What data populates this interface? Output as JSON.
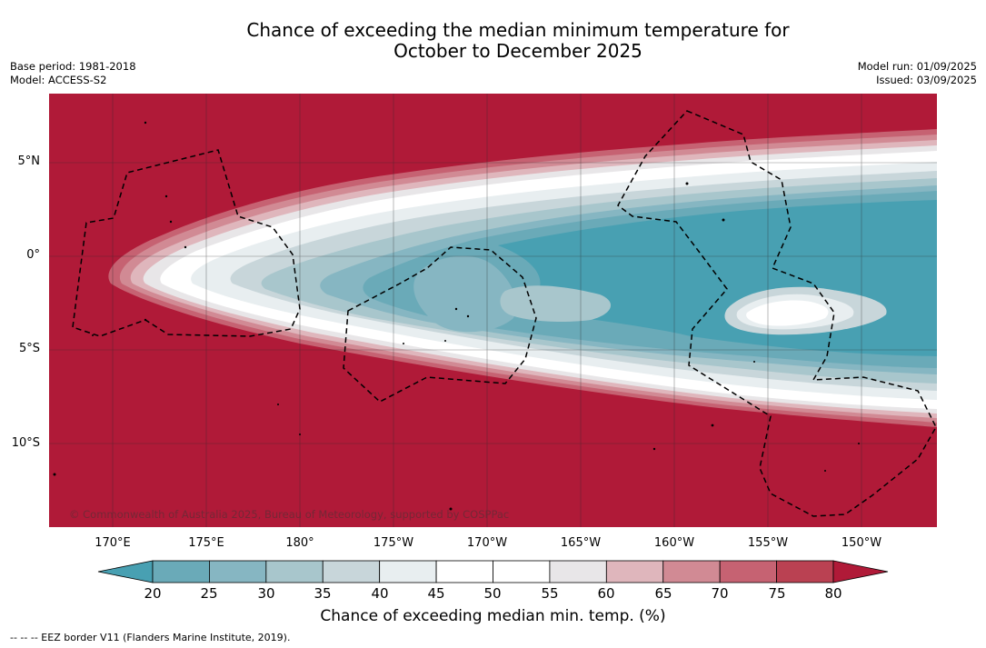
{
  "title_line1": "Chance of exceeding the median minimum temperature for",
  "title_line2": "October to December 2025",
  "meta": {
    "base_period": "Base period: 1981-2018",
    "model": "Model: ACCESS-S2",
    "model_run": "Model run: 01/09/2025",
    "issued": "Issued: 03/09/2025"
  },
  "lat_labels": [
    "5°N",
    "0°",
    "5°S",
    "10°S"
  ],
  "lon_labels": [
    "170°E",
    "175°E",
    "180°",
    "175°W",
    "170°W",
    "165°W",
    "160°W",
    "155°W",
    "150°W"
  ],
  "copyright": "© Commonwealth of Australia 2025, Bureau of Meteorology, supported by COSPPac",
  "colorbar": {
    "ticks": [
      "20",
      "25",
      "30",
      "35",
      "40",
      "45",
      "50",
      "55",
      "60",
      "65",
      "70",
      "75",
      "80"
    ],
    "colors": [
      "#6aaab8",
      "#86b6c2",
      "#a8c6cc",
      "#c8d6da",
      "#e8eef0",
      "#ffffff",
      "#ffffff",
      "#e8e6e8",
      "#dfb6bc",
      "#d18a94",
      "#c66272",
      "#ba4152"
    ],
    "low_color": "#48a0b2",
    "high_color": "#b01a38",
    "label": "Chance of exceeding median min. temp. (%)"
  },
  "colors": {
    "dominant_warm": "#b01a38",
    "dominant_cool": "#48a0b2"
  },
  "legend_note": "--  --  -- EEZ border V11 (Flanders Marine Institute, 2019)."
}
